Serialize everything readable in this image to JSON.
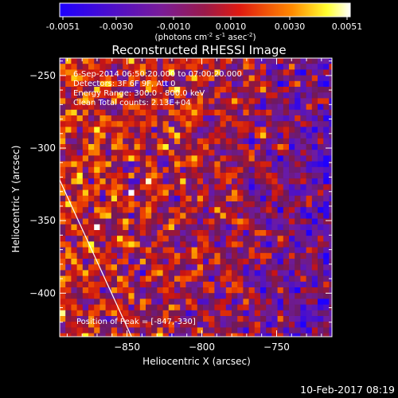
{
  "colorbar": {
    "ticks": [
      "-0.0051",
      "-0.0030",
      "-0.0010",
      "0.0010",
      "0.0030",
      "0.0051"
    ],
    "units_prefix": "(photons cm",
    "units_exp1": "-2",
    "units_mid1": " s",
    "units_exp2": "-1",
    "units_mid2": " asec",
    "units_exp3": "-2",
    "units_suffix": ")",
    "range": [
      -0.0051,
      0.0051
    ]
  },
  "chart_data": {
    "type": "heatmap",
    "title": "Reconstructed RHESSI Image",
    "xlabel": "Heliocentric X (arcsec)",
    "ylabel": "Heliocentric Y (arcsec)",
    "xlim": [
      -895,
      -713
    ],
    "ylim": [
      -430,
      -238
    ],
    "xticks": [
      -850,
      -800,
      -750
    ],
    "yticks": [
      -250,
      -300,
      -350,
      -400
    ],
    "annotations": [
      "6-Sep-2014 06:50:20.000 to 07:00:20.000",
      "Detectors: 3F 6F 9F, Att 0",
      "Energy Range: 300.0 - 800.0 keV",
      "Clean     Total counts: 2.13E+04"
    ],
    "peak_label": "Position of Peak = [-847,-330]",
    "peak": [
      -847,
      -330
    ],
    "limb_line": [
      [
        -895,
        -322
      ],
      [
        -847,
        -430
      ]
    ],
    "colormap": [
      "#1e00ff",
      "#7a1c98",
      "#d01a14",
      "#ff7e00",
      "#ffff00",
      "#ffffff"
    ]
  },
  "footer": {
    "timestamp": "10-Feb-2017 08:19"
  }
}
